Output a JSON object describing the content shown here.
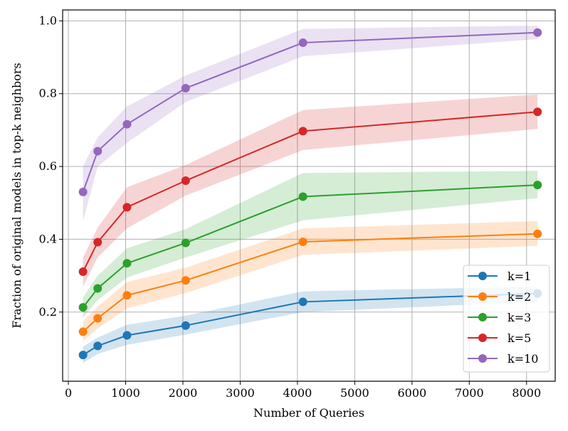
{
  "chart_data": {
    "type": "line",
    "title": "",
    "xlabel": "Number of Queries",
    "ylabel": "Fraction of original models in top-k neighbors",
    "xlim": [
      -100,
      8500
    ],
    "ylim": [
      0.01,
      1.03
    ],
    "xticks": [
      0,
      1000,
      2000,
      3000,
      4000,
      5000,
      6000,
      7000,
      8000
    ],
    "yticks": [
      0.2,
      0.4,
      0.6,
      0.8,
      1.0
    ],
    "xtick_labels": [
      "0",
      "1000",
      "2000",
      "3000",
      "4000",
      "5000",
      "6000",
      "7000",
      "8000"
    ],
    "ytick_labels": [
      "0.2",
      "0.4",
      "0.6",
      "0.8",
      "1.0"
    ],
    "grid": true,
    "legend_position": "lower-right",
    "x": [
      256,
      512,
      1024,
      2048,
      4096,
      8192
    ],
    "series": [
      {
        "name": "k=1",
        "color": "#1f77b4",
        "values": [
          0.082,
          0.107,
          0.136,
          0.163,
          0.228,
          0.251
        ],
        "lower": [
          0.06,
          0.085,
          0.11,
          0.138,
          0.2,
          0.228
        ],
        "upper": [
          0.105,
          0.13,
          0.165,
          0.19,
          0.257,
          0.27
        ]
      },
      {
        "name": "k=2",
        "color": "#ff7f0e",
        "values": [
          0.146,
          0.183,
          0.246,
          0.287,
          0.393,
          0.415
        ],
        "lower": [
          0.12,
          0.155,
          0.21,
          0.252,
          0.357,
          0.382
        ],
        "upper": [
          0.175,
          0.215,
          0.282,
          0.322,
          0.43,
          0.45
        ]
      },
      {
        "name": "k=3",
        "color": "#2ca02c",
        "values": [
          0.213,
          0.265,
          0.334,
          0.39,
          0.517,
          0.549
        ],
        "lower": [
          0.185,
          0.233,
          0.295,
          0.35,
          0.452,
          0.513
        ],
        "upper": [
          0.24,
          0.3,
          0.375,
          0.428,
          0.582,
          0.588
        ]
      },
      {
        "name": "k=5",
        "color": "#d62728",
        "values": [
          0.311,
          0.392,
          0.488,
          0.561,
          0.697,
          0.75
        ],
        "lower": [
          0.27,
          0.35,
          0.43,
          0.52,
          0.645,
          0.703
        ],
        "upper": [
          0.35,
          0.432,
          0.543,
          0.604,
          0.755,
          0.798
        ]
      },
      {
        "name": "k=10",
        "color": "#9467bd",
        "values": [
          0.53,
          0.642,
          0.716,
          0.815,
          0.94,
          0.968
        ],
        "lower": [
          0.45,
          0.6,
          0.665,
          0.777,
          0.903,
          0.95
        ],
        "upper": [
          0.6,
          0.68,
          0.765,
          0.85,
          0.978,
          0.987
        ]
      }
    ]
  }
}
